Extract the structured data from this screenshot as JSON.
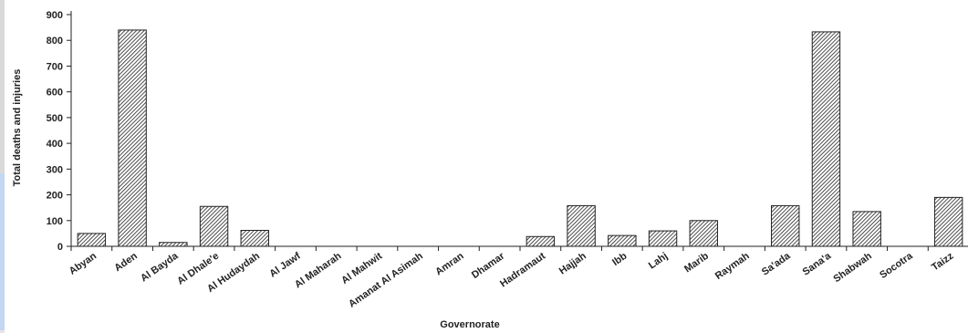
{
  "chart_data": {
    "type": "bar",
    "title": "",
    "xlabel": "Governorate",
    "ylabel": "Total deaths and injuries",
    "ylim": [
      0,
      900
    ],
    "yticks": [
      0,
      100,
      200,
      300,
      400,
      500,
      600,
      700,
      800,
      900
    ],
    "grid": false,
    "legend": "none",
    "bar_pattern": "diagonal-hatch",
    "colors": {
      "bar_fill": "#ffffff",
      "hatch": "#222222",
      "axis": "#222222"
    },
    "categories": [
      "Abyan",
      "Aden",
      "Al Bayda",
      "Al Dhale'e",
      "Al Hudaydah",
      "Al Jawf",
      "Al Maharah",
      "Al Mahwit",
      "Amanat Al Asimah",
      "Amran",
      "Dhamar",
      "Hadramaut",
      "Hajjah",
      "Ibb",
      "Lahj",
      "Marib",
      "Raymah",
      "Sa'ada",
      "Sana'a",
      "Shabwah",
      "Socotra",
      "Taizz"
    ],
    "values": [
      50,
      840,
      15,
      155,
      62,
      0,
      0,
      0,
      0,
      0,
      0,
      38,
      158,
      42,
      60,
      100,
      0,
      158,
      833,
      135,
      0,
      190
    ]
  }
}
